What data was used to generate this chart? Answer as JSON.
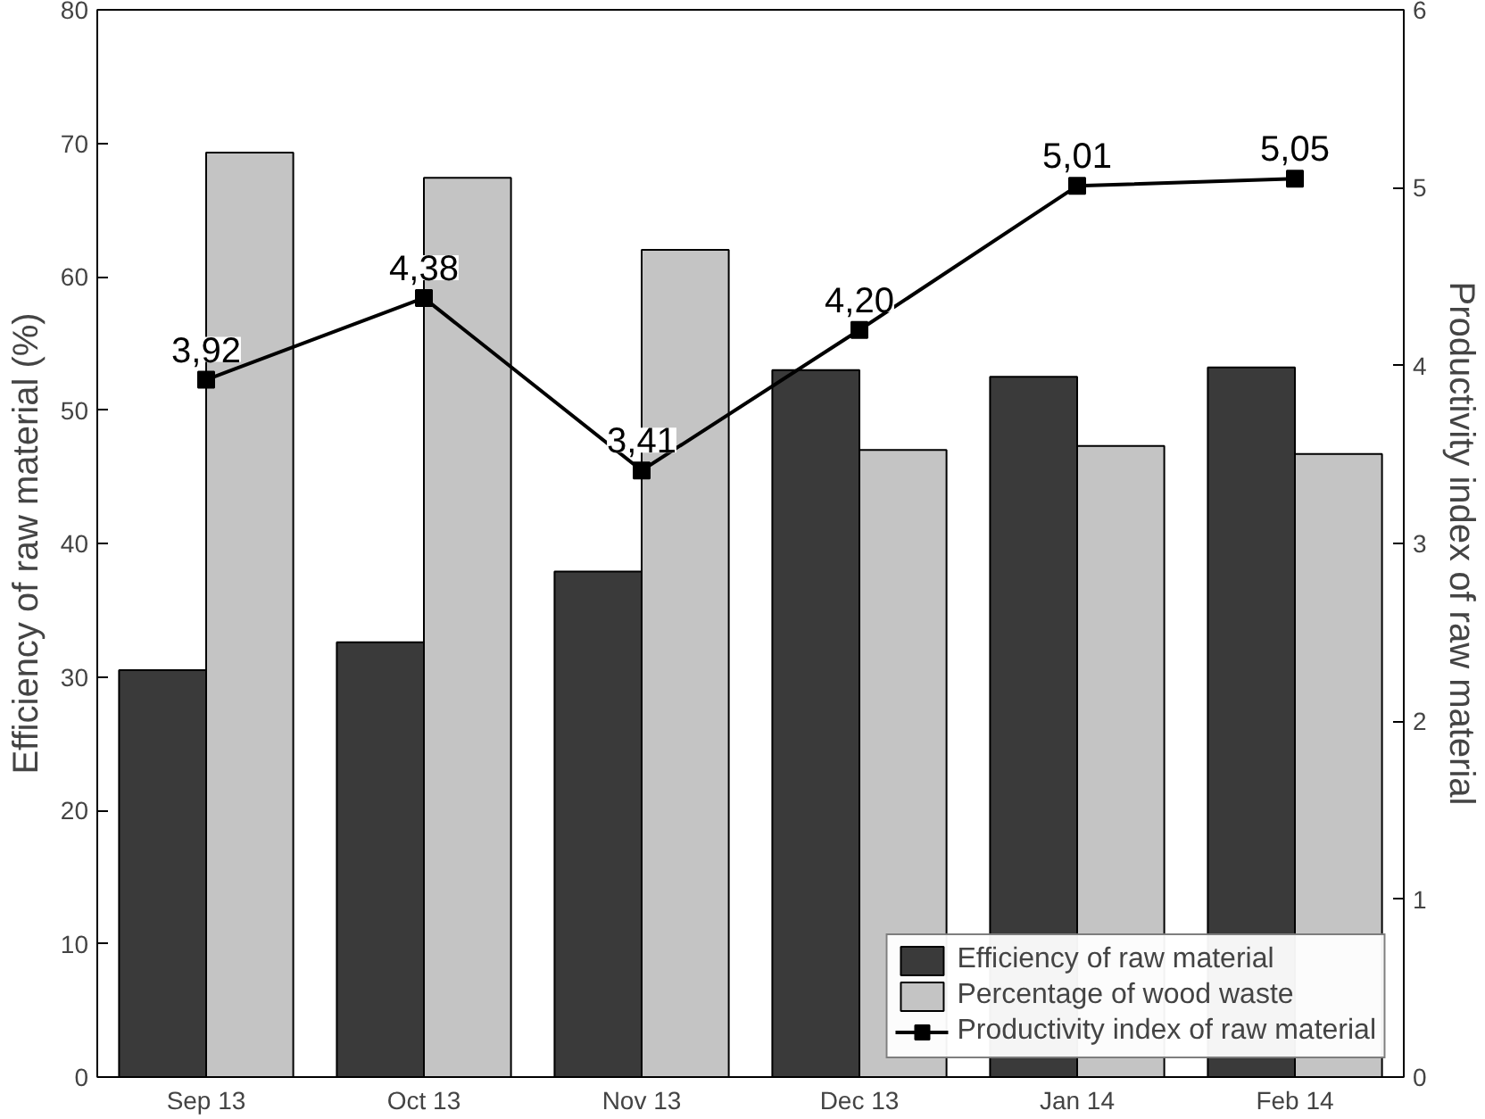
{
  "chart_data": {
    "type": "bar",
    "categories": [
      "Sep 13",
      "Oct 13",
      "Nov 13",
      "Dec 13",
      "Jan 14",
      "Feb 14"
    ],
    "ylabel": "Efficiency of raw material (%)",
    "y2label": "Productivity index of raw material",
    "ylim": [
      0,
      80
    ],
    "yticks": [
      0,
      10,
      20,
      30,
      40,
      50,
      60,
      70,
      80
    ],
    "y2lim": [
      0,
      6
    ],
    "y2ticks": [
      0,
      1,
      2,
      3,
      4,
      5,
      6
    ],
    "legend": "bottom right",
    "grid": false,
    "marker": "square",
    "line_style": "solid",
    "series": [
      {
        "name": "Efficiency of raw material",
        "color": "#3a3a3a",
        "values": [
          30.5,
          32.6,
          37.9,
          53.0,
          52.5,
          53.2
        ]
      },
      {
        "name": "Percentage of wood waste",
        "color": "#c4c4c4",
        "values": [
          69.3,
          67.4,
          62.0,
          47.0,
          47.3,
          46.7
        ]
      },
      {
        "name": "Productivity index of raw material",
        "type": "line",
        "axis": "y2",
        "color": "#000000",
        "values": [
          3.92,
          4.38,
          3.41,
          4.2,
          5.01,
          5.05
        ],
        "value_labels": [
          "3,92",
          "4,38",
          "3,41",
          "4,20",
          "5,01",
          "5,05"
        ]
      }
    ]
  }
}
